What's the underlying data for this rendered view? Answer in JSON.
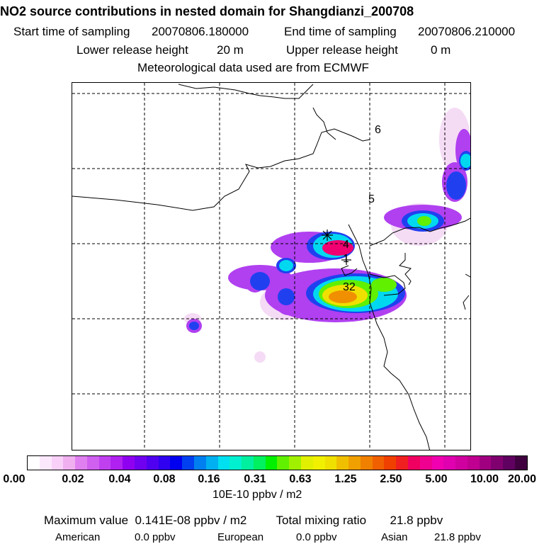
{
  "title": "NO2 source contributions in nested domain for Shangdianzi_200708",
  "header": {
    "start_label": "Start time of sampling",
    "start_value": "20070806.180000",
    "end_label": "End time of sampling",
    "end_value": "20070806.210000",
    "lower_label": "Lower release height",
    "lower_value": "20 m",
    "upper_label": "Upper release height",
    "upper_value": "0 m",
    "met_line": "Meteorological data used are from ECMWF"
  },
  "markers": [
    "6",
    "5",
    "4",
    "1",
    "32"
  ],
  "colorbar": {
    "ticks": [
      "0.00",
      "0.02",
      "0.04",
      "0.08",
      "0.16",
      "0.31",
      "0.63",
      "1.25",
      "2.50",
      "5.00",
      "10.00",
      "20.00"
    ],
    "colors": [
      "#ffffff",
      "#fce8fc",
      "#f8d0f8",
      "#f0b0f0",
      "#e080f0",
      "#d060f0",
      "#c040f0",
      "#b020f0",
      "#9000f0",
      "#7000f0",
      "#5000f0",
      "#3000f0",
      "#0000f0",
      "#0040f0",
      "#0080f0",
      "#00b0f0",
      "#00e0f0",
      "#00f0d0",
      "#00f0a0",
      "#00f060",
      "#00f000",
      "#60f000",
      "#a0f000",
      "#e0f000",
      "#f0f000",
      "#f0e000",
      "#f0c000",
      "#f0a000",
      "#f08000",
      "#f06000",
      "#f04000",
      "#f02020",
      "#f00060",
      "#f00090",
      "#f000b0",
      "#e000b0",
      "#d000a0",
      "#c00090",
      "#a00080",
      "#800070",
      "#600060",
      "#400040"
    ],
    "unit": "10E-10 ppbv / m2"
  },
  "summary": {
    "max_label": "Maximum value",
    "max_value": "0.141E-08 ppbv / m2",
    "total_label": "Total mixing ratio",
    "total_value": "21.8 ppbv",
    "american_label": "American",
    "american_value": "0.0 ppbv",
    "european_label": "European",
    "european_value": "0.0 ppbv",
    "asian_label": "Asian",
    "asian_value": "21.8 ppbv"
  }
}
